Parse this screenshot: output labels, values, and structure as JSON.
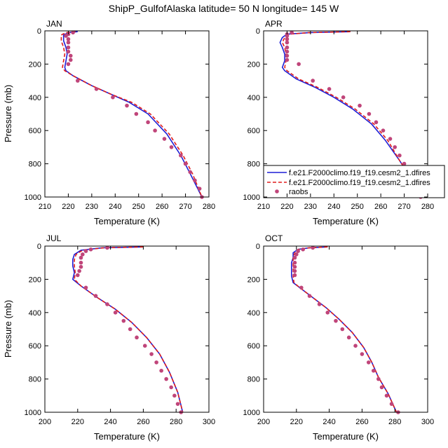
{
  "title": "ShipP_GulfofAlaska  latitude= 50 N longitude= 145 W",
  "colors": {
    "model_a": "#1f1fd6",
    "model_b": "#e01b1b",
    "raobs": "#c0457a"
  },
  "legend": {
    "entries": [
      "f.e21.F2000climo.f19_f19.cesm2_1.dfires",
      "f.e21.F2000climo.f19_f19.cesm2_1.dfires",
      "raobs"
    ]
  },
  "chart_data": [
    {
      "type": "line",
      "panel_label": "JAN",
      "xlabel": "Temperature (K)",
      "ylabel": "Pressure (mb)",
      "xlim": [
        210,
        280
      ],
      "ylim": [
        1000,
        0
      ],
      "xticks": [
        210,
        220,
        230,
        240,
        250,
        260,
        270,
        280
      ],
      "yticks": [
        0,
        200,
        400,
        600,
        800,
        1000
      ],
      "series": [
        {
          "name": "f.e21.F2000climo.f19_f19.cesm2_1.dfires",
          "style": "solid",
          "color": "#1f1fd6",
          "x": [
            224,
            220,
            218,
            218,
            219,
            219.5,
            219,
            218.5,
            219,
            222,
            230,
            238,
            246,
            254,
            262,
            268,
            272,
            277
          ],
          "y": [
            5,
            10,
            25,
            60,
            100,
            140,
            180,
            220,
            240,
            270,
            330,
            380,
            430,
            500,
            620,
            750,
            860,
            1000
          ]
        },
        {
          "name": "f.e21.F2000climo.f19_f19.cesm2_1.dfires",
          "style": "dashed",
          "color": "#e01b1b",
          "x": [
            223,
            219,
            217,
            217,
            218,
            218.5,
            218,
            217.5,
            218.5,
            222,
            230,
            238,
            247,
            255,
            263,
            269,
            273,
            277
          ],
          "y": [
            5,
            10,
            25,
            60,
            100,
            140,
            180,
            220,
            240,
            270,
            330,
            380,
            430,
            500,
            620,
            750,
            860,
            1000
          ]
        },
        {
          "name": "raobs",
          "style": "marker",
          "color": "#c0457a",
          "x": [
            222,
            220,
            219,
            220,
            220,
            220,
            220,
            221,
            221,
            220,
            224,
            232,
            239,
            245,
            249,
            254,
            257,
            261,
            264,
            268,
            270,
            272,
            274,
            276,
            277
          ],
          "y": [
            10,
            20,
            30,
            50,
            70,
            100,
            125,
            150,
            175,
            200,
            300,
            350,
            400,
            450,
            500,
            550,
            600,
            650,
            700,
            750,
            800,
            850,
            900,
            950,
            1000
          ]
        }
      ]
    },
    {
      "type": "line",
      "panel_label": "APR",
      "xlabel": "Temperature (K)",
      "ylabel": "",
      "xlim": [
        210,
        280
      ],
      "ylim": [
        1000,
        0
      ],
      "xticks": [
        210,
        220,
        230,
        240,
        250,
        260,
        270,
        280
      ],
      "yticks": [
        0,
        200,
        400,
        600,
        800,
        1000
      ],
      "legend_position": "bottom-right",
      "series": [
        {
          "name": "f.e21.F2000climo.f19_f19.cesm2_1.dfires",
          "style": "solid",
          "color": "#1f1fd6",
          "x": [
            247,
            230,
            220,
            218,
            217,
            218,
            219,
            219,
            218,
            219,
            224,
            232,
            240,
            248,
            256,
            262,
            268,
            273,
            277
          ],
          "y": [
            5,
            10,
            20,
            40,
            70,
            100,
            140,
            180,
            220,
            240,
            290,
            340,
            400,
            470,
            560,
            660,
            780,
            890,
            1000
          ]
        },
        {
          "name": "f.e21.F2000climo.f19_f19.cesm2_1.dfires",
          "style": "dashed",
          "color": "#e01b1b",
          "x": [
            247,
            230,
            221,
            219,
            218,
            219,
            219.5,
            219.5,
            219,
            220,
            225,
            233,
            241,
            249,
            257,
            263,
            268,
            273,
            277
          ],
          "y": [
            5,
            10,
            20,
            40,
            70,
            100,
            140,
            180,
            220,
            240,
            290,
            340,
            400,
            470,
            560,
            660,
            780,
            890,
            1000
          ]
        },
        {
          "name": "raobs",
          "style": "marker",
          "color": "#c0457a",
          "x": [
            222,
            220,
            220,
            220,
            220,
            220,
            220,
            220,
            220,
            225,
            231,
            238,
            244,
            251,
            255,
            258,
            261,
            264,
            266,
            268,
            270,
            272,
            274,
            276,
            277
          ],
          "y": [
            10,
            20,
            30,
            50,
            70,
            100,
            125,
            150,
            175,
            200,
            300,
            350,
            400,
            450,
            500,
            550,
            600,
            650,
            700,
            750,
            800,
            850,
            900,
            950,
            1000
          ]
        }
      ]
    },
    {
      "type": "line",
      "panel_label": "JUL",
      "xlabel": "Temperature (K)",
      "ylabel": "Pressure (mb)",
      "xlim": [
        200,
        300
      ],
      "ylim": [
        1000,
        0
      ],
      "xticks": [
        200,
        220,
        240,
        260,
        280,
        300
      ],
      "yticks": [
        0,
        200,
        400,
        600,
        800,
        1000
      ],
      "series": [
        {
          "name": "f.e21.F2000climo.f19_f19.cesm2_1.dfires",
          "style": "solid",
          "color": "#1f1fd6",
          "x": [
            260,
            235,
            222,
            218,
            217,
            217,
            218,
            217,
            222,
            232,
            243,
            253,
            262,
            270,
            276,
            281,
            284
          ],
          "y": [
            5,
            10,
            25,
            50,
            80,
            120,
            160,
            200,
            240,
            310,
            380,
            460,
            550,
            650,
            760,
            880,
            1000
          ]
        },
        {
          "name": "f.e21.F2000climo.f19_f19.cesm2_1.dfires",
          "style": "dashed",
          "color": "#e01b1b",
          "x": [
            260,
            236,
            223,
            219,
            218,
            218,
            218.5,
            218,
            222,
            232,
            243,
            253,
            262,
            270,
            276,
            281,
            284
          ],
          "y": [
            5,
            10,
            25,
            50,
            80,
            120,
            160,
            200,
            240,
            310,
            380,
            460,
            550,
            650,
            760,
            880,
            1000
          ]
        },
        {
          "name": "raobs",
          "style": "marker",
          "color": "#c0457a",
          "x": [
            238,
            228,
            225,
            223,
            222,
            222,
            222,
            221,
            220,
            225,
            231,
            238,
            243,
            248,
            252,
            256,
            261,
            265,
            268,
            271,
            274,
            277,
            279,
            281,
            283
          ],
          "y": [
            10,
            20,
            30,
            50,
            70,
            100,
            125,
            150,
            175,
            250,
            300,
            350,
            400,
            450,
            500,
            550,
            600,
            650,
            700,
            750,
            800,
            850,
            900,
            950,
            1000
          ]
        }
      ]
    },
    {
      "type": "line",
      "panel_label": "OCT",
      "xlabel": "Temperature (K)",
      "ylabel": "",
      "xlim": [
        200,
        300
      ],
      "ylim": [
        1000,
        0
      ],
      "xticks": [
        200,
        220,
        240,
        260,
        280,
        300
      ],
      "yticks": [
        0,
        200,
        400,
        600,
        800,
        1000
      ],
      "series": [
        {
          "name": "f.e21.F2000climo.f19_f19.cesm2_1.dfires",
          "style": "solid",
          "color": "#1f1fd6",
          "x": [
            239,
            228,
            221,
            218,
            218,
            217,
            217,
            217,
            218,
            222,
            230,
            238,
            246,
            254,
            261,
            266,
            270,
            276,
            281
          ],
          "y": [
            5,
            10,
            20,
            40,
            70,
            100,
            140,
            180,
            220,
            250,
            310,
            370,
            440,
            520,
            610,
            700,
            790,
            890,
            1000
          ]
        },
        {
          "name": "f.e21.F2000climo.f19_f19.cesm2_1.dfires",
          "style": "dashed",
          "color": "#e01b1b",
          "x": [
            239,
            228,
            221,
            219,
            218,
            218,
            218,
            218,
            218.5,
            222,
            230,
            238,
            246,
            254,
            261,
            266,
            270,
            276,
            281
          ],
          "y": [
            5,
            10,
            20,
            40,
            70,
            100,
            140,
            180,
            220,
            250,
            310,
            370,
            440,
            520,
            610,
            700,
            790,
            890,
            1000
          ]
        },
        {
          "name": "raobs",
          "style": "marker",
          "color": "#c0457a",
          "x": [
            230,
            224,
            221,
            220,
            219,
            219,
            219,
            219,
            219,
            223,
            228,
            234,
            239,
            244,
            248,
            252,
            256,
            260,
            264,
            267,
            270,
            272,
            275,
            278,
            282
          ],
          "y": [
            10,
            20,
            30,
            50,
            70,
            100,
            125,
            150,
            175,
            250,
            300,
            350,
            400,
            450,
            500,
            550,
            600,
            650,
            700,
            750,
            800,
            850,
            900,
            950,
            1000
          ]
        }
      ]
    }
  ]
}
